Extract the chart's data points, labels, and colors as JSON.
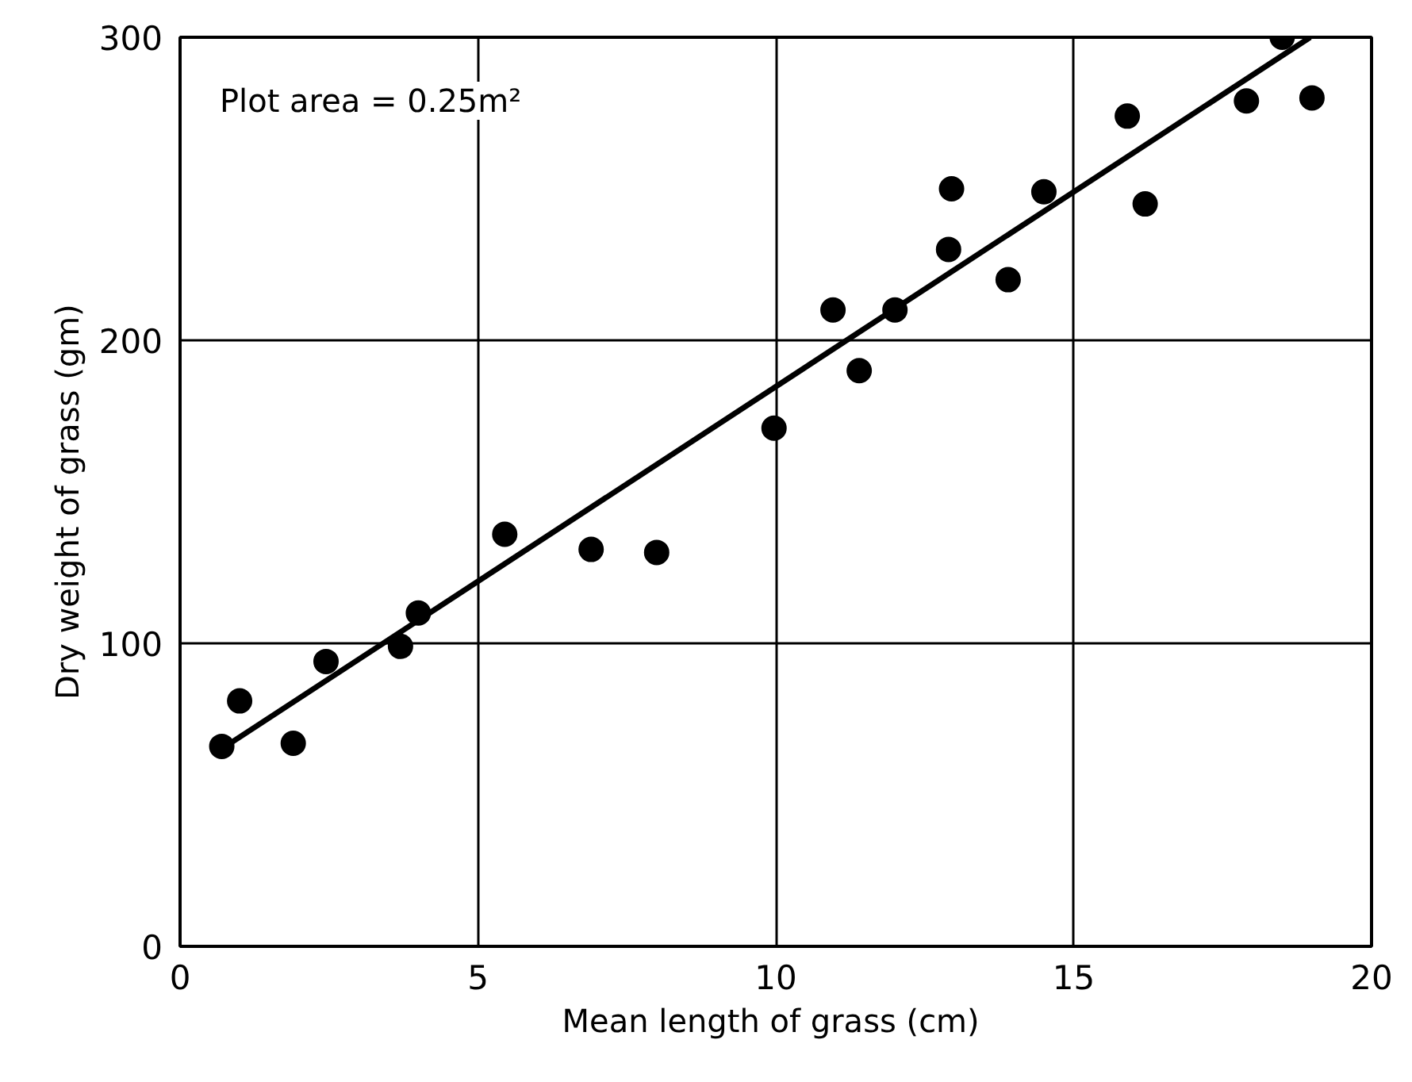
{
  "chart_data": {
    "type": "scatter",
    "xlabel": "Mean length of grass  (cm)",
    "ylabel": "Dry  weight of grass  (gm)",
    "annotations": [
      "Plot area = 0.25m²"
    ],
    "xlim": [
      0,
      20
    ],
    "ylim": [
      0,
      300
    ],
    "xticks": [
      0,
      5,
      10,
      15,
      20
    ],
    "yticks": [
      0,
      100,
      200,
      300
    ],
    "grid": true,
    "marker": "circle",
    "series": [
      {
        "color": "#000000",
        "x": [
          0.7,
          1.0,
          1.9,
          2.45,
          3.7,
          4.0,
          5.45,
          6.9,
          8.0,
          9.97,
          10.96,
          11.4,
          12.0,
          12.9,
          12.95,
          13.9,
          14.5,
          15.9,
          16.2,
          17.9,
          18.5,
          19.0
        ],
        "values": [
          66,
          81,
          67,
          94,
          99,
          110,
          136,
          131,
          130,
          171,
          210,
          190,
          210,
          230,
          250,
          220,
          249,
          274,
          245,
          279,
          300,
          280
        ]
      },
      {
        "type": "line",
        "color": "#000000",
        "marker": "none",
        "line_style": "solid",
        "x": [
          0.88,
          18.97
        ],
        "values": [
          67.5,
          300
        ]
      }
    ]
  }
}
